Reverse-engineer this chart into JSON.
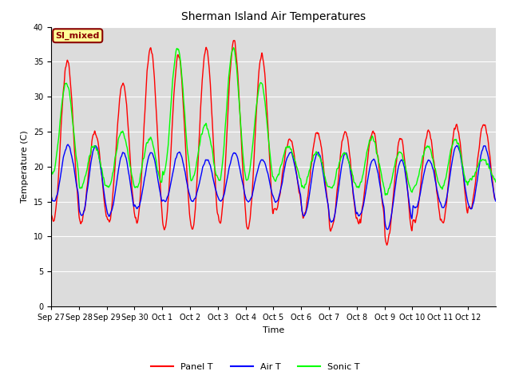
{
  "title": "Sherman Island Air Temperatures",
  "xlabel": "Time",
  "ylabel": "Temperature (C)",
  "ylim": [
    0,
    40
  ],
  "yticks": [
    0,
    5,
    10,
    15,
    20,
    25,
    30,
    35,
    40
  ],
  "legend_labels": [
    "Panel T",
    "Air T",
    "Sonic T"
  ],
  "legend_colors": [
    "red",
    "blue",
    "lime"
  ],
  "annotation_text": "SI_mixed",
  "annotation_color": "#8B0000",
  "annotation_bg": "#FFFF99",
  "bg_color": "#DCDCDC",
  "line_width": 1.0,
  "xtick_labels": [
    "Sep 27",
    "Sep 28",
    "Sep 29",
    "Sep 30",
    "Oct 1",
    "Oct 2",
    "Oct 3",
    "Oct 4",
    "Oct 5",
    "Oct 6",
    "Oct 7",
    "Oct 8",
    "Oct 9",
    "Oct 10",
    "Oct 11",
    "Oct 12"
  ],
  "n_days": 16,
  "points_per_day": 144,
  "title_fontsize": 10,
  "axis_label_fontsize": 8,
  "tick_fontsize": 7,
  "legend_fontsize": 8
}
